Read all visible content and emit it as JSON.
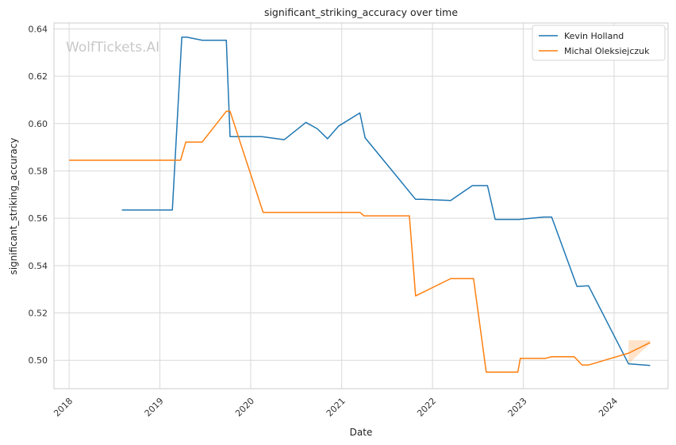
{
  "chart_data": {
    "type": "line",
    "title": "significant_striking_accuracy over time",
    "xlabel": "Date",
    "ylabel": "significant_striking_accuracy",
    "watermark": "WolfTickets.AI",
    "xlim": [
      "2017-11-01",
      "2024-08-05"
    ],
    "ylim": [
      0.488,
      0.6425
    ],
    "x_ticks": [
      "2018-01-01",
      "2019-01-01",
      "2020-01-01",
      "2021-01-01",
      "2022-01-01",
      "2023-01-01",
      "2024-01-01"
    ],
    "x_tick_labels": [
      "2018",
      "2019",
      "2020",
      "2021",
      "2022",
      "2023",
      "2024"
    ],
    "y_ticks": [
      0.5,
      0.52,
      0.54,
      0.56,
      0.58,
      0.6,
      0.62,
      0.64
    ],
    "y_tick_labels": [
      "0.50",
      "0.52",
      "0.54",
      "0.56",
      "0.58",
      "0.60",
      "0.62",
      "0.64"
    ],
    "grid": true,
    "legend_position": "top-right",
    "series": [
      {
        "name": "Kevin Holland",
        "color": "#1f77b4",
        "points": [
          [
            "2018-08-01",
            0.5635
          ],
          [
            "2019-02-20",
            0.5635
          ],
          [
            "2019-03-30",
            0.6365
          ],
          [
            "2019-04-20",
            0.6365
          ],
          [
            "2019-06-20",
            0.6352
          ],
          [
            "2019-09-25",
            0.6352
          ],
          [
            "2019-10-10",
            0.5945
          ],
          [
            "2020-02-15",
            0.5945
          ],
          [
            "2020-05-15",
            0.5932
          ],
          [
            "2020-08-10",
            0.6005
          ],
          [
            "2020-09-25",
            0.5978
          ],
          [
            "2020-11-05",
            0.5936
          ],
          [
            "2020-12-20",
            0.599
          ],
          [
            "2021-03-15",
            0.6045
          ],
          [
            "2021-04-05",
            0.594
          ],
          [
            "2021-10-25",
            0.568
          ],
          [
            "2021-11-20",
            0.568
          ],
          [
            "2022-03-15",
            0.5675
          ],
          [
            "2022-06-10",
            0.5738
          ],
          [
            "2022-08-10",
            0.5738
          ],
          [
            "2022-09-10",
            0.5595
          ],
          [
            "2022-12-15",
            0.5595
          ],
          [
            "2023-03-25",
            0.5605
          ],
          [
            "2023-04-25",
            0.5605
          ],
          [
            "2023-08-05",
            0.5312
          ],
          [
            "2023-09-20",
            0.5315
          ],
          [
            "2024-02-28",
            0.4985
          ],
          [
            "2024-05-25",
            0.4978
          ]
        ]
      },
      {
        "name": "Michal Oleksiejczuk",
        "color": "#ff7f0e",
        "points": [
          [
            "2018-01-01",
            0.5845
          ],
          [
            "2019-03-25",
            0.5845
          ],
          [
            "2019-04-15",
            0.5922
          ],
          [
            "2019-06-20",
            0.5922
          ],
          [
            "2019-09-25",
            0.6052
          ],
          [
            "2019-10-10",
            0.6052
          ],
          [
            "2020-02-20",
            0.5625
          ],
          [
            "2021-03-15",
            0.5625
          ],
          [
            "2021-04-01",
            0.561
          ],
          [
            "2021-09-30",
            0.561
          ],
          [
            "2021-10-25",
            0.5272
          ],
          [
            "2022-03-15",
            0.5345
          ],
          [
            "2022-06-15",
            0.5345
          ],
          [
            "2022-08-05",
            0.495
          ],
          [
            "2022-12-10",
            0.495
          ],
          [
            "2022-12-20",
            0.5008
          ],
          [
            "2023-03-30",
            0.5008
          ],
          [
            "2023-04-25",
            0.5015
          ],
          [
            "2023-07-25",
            0.5015
          ],
          [
            "2023-08-25",
            0.498
          ],
          [
            "2023-09-20",
            0.498
          ],
          [
            "2024-02-28",
            0.503
          ],
          [
            "2024-05-25",
            0.5075
          ]
        ],
        "band": {
          "upper": [
            [
              "2024-02-28",
              0.5085
            ],
            [
              "2024-05-25",
              0.5085
            ]
          ],
          "lower": [
            [
              "2024-02-28",
              0.4985
            ],
            [
              "2024-05-25",
              0.5072
            ]
          ]
        }
      }
    ]
  }
}
